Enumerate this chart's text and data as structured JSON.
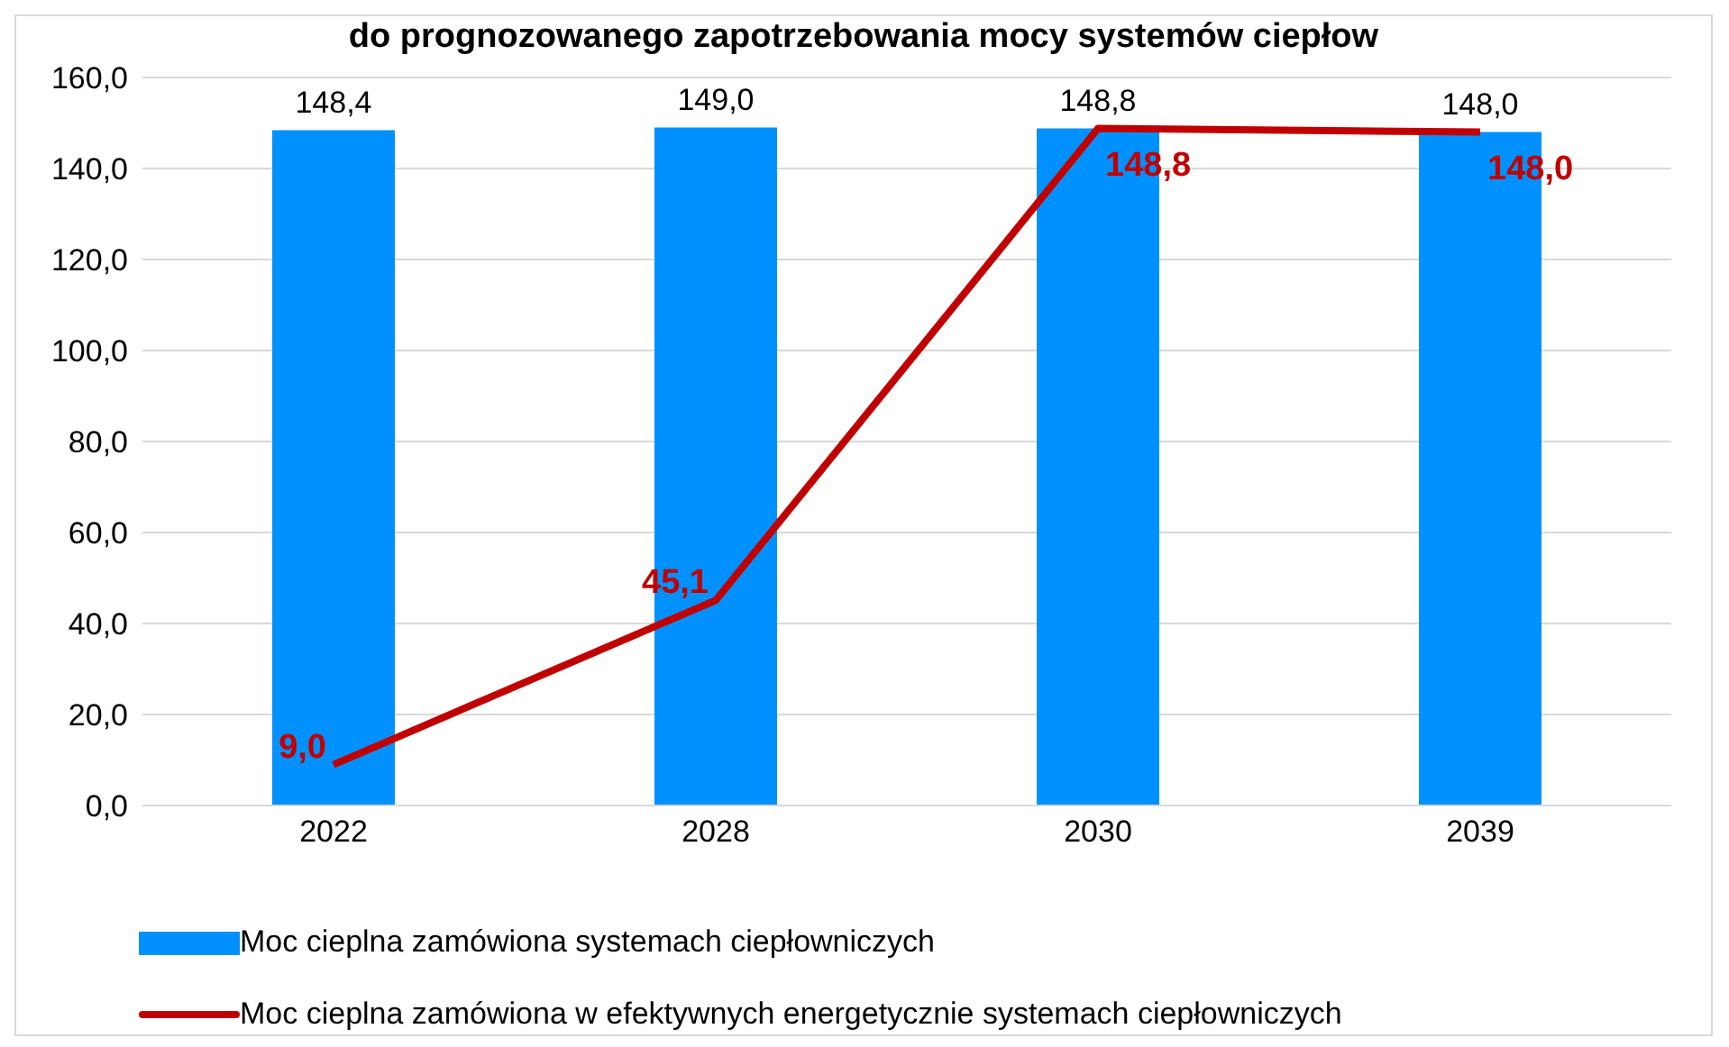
{
  "chart_data": {
    "type": "bar",
    "title": "do prognozowanego zapotrzebowania mocy systemów ciepłow",
    "categories": [
      "2022",
      "2028",
      "2030",
      "2039"
    ],
    "series": [
      {
        "name": "Moc cieplna zamówiona  systemach ciepłowniczych",
        "color": "#0091ff",
        "values": [
          148.4,
          149.0,
          148.8,
          148.0
        ],
        "value_labels": [
          "148,4",
          "149,0",
          "148,8",
          "148,0"
        ]
      },
      {
        "name": "Moc cieplna zamówiona w efektywnych energetycznie systemach ciepłowniczych",
        "type": "line",
        "color": "#c00000",
        "values": [
          9.0,
          45.1,
          148.8,
          148.0
        ],
        "value_labels": [
          "9,0",
          "45,1",
          "148,8",
          "148,0"
        ]
      }
    ],
    "ylim": [
      0,
      160
    ],
    "yticks": [
      {
        "value": 0,
        "label": "0,0"
      },
      {
        "value": 20,
        "label": "20,0"
      },
      {
        "value": 40,
        "label": "40,0"
      },
      {
        "value": 60,
        "label": "60,0"
      },
      {
        "value": 80,
        "label": "80,0"
      },
      {
        "value": 100,
        "label": "100,0"
      },
      {
        "value": 120,
        "label": "120,0"
      },
      {
        "value": 140,
        "label": "140,0"
      },
      {
        "value": 160,
        "label": "160,0"
      }
    ],
    "grid": "y",
    "legend": "bottom",
    "marker": "none",
    "line_style": "solid"
  }
}
